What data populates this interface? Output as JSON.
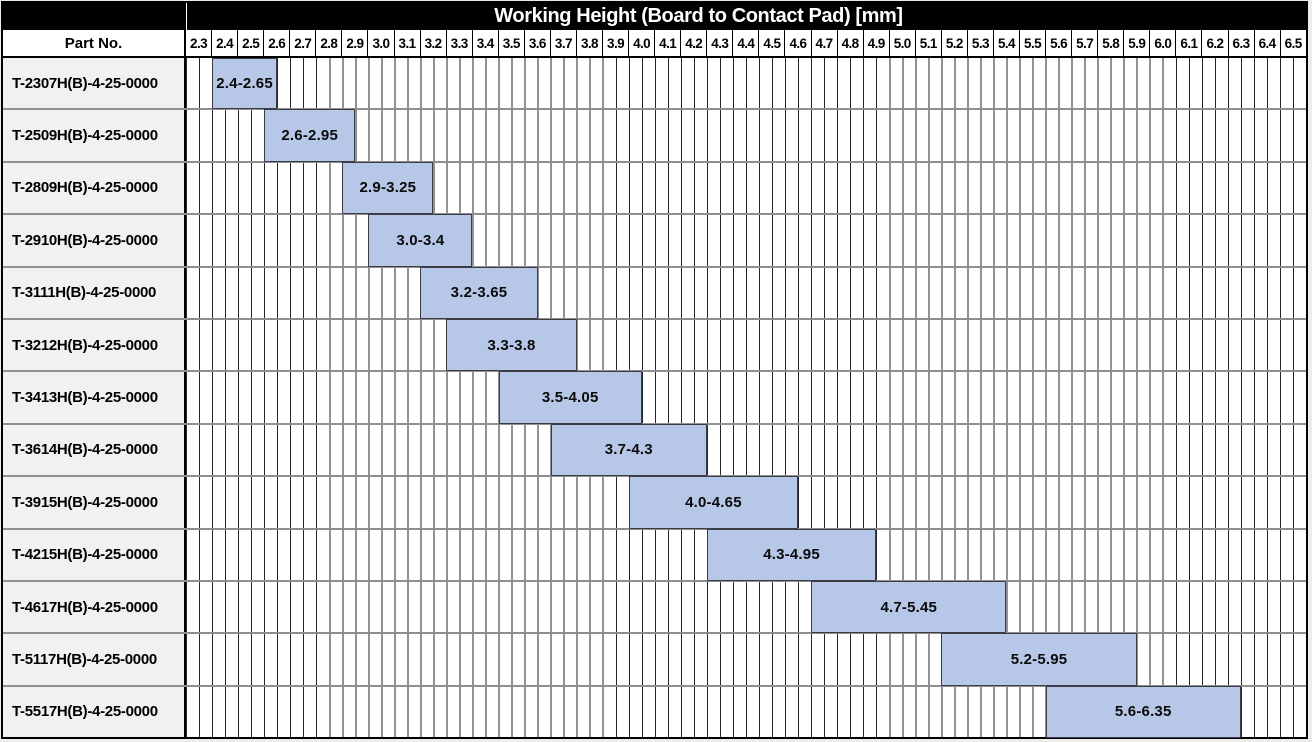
{
  "title": "Working Height (Board to Contact Pad) [mm]",
  "part_no_header": "Part No.",
  "colors": {
    "title_bg": "#000000",
    "title_text": "#ffffff",
    "bar_fill": "#b6c7e7",
    "bar_border": "#3c3c46",
    "part_cell_bg": "#f1f1f1",
    "grid_line": "#26262b",
    "row_separator": "#8f8f8f"
  },
  "chart_data": {
    "type": "bar",
    "subtype": "horizontal-range-gantt",
    "title": "Working Height (Board to Contact Pad) [mm]",
    "legend": "none",
    "grid": "on",
    "axis": {
      "min": 2.3,
      "max": 6.6,
      "tick_step": 0.1,
      "minor_division": 0.05,
      "tick_labels": [
        "2.3",
        "2.4",
        "2.5",
        "2.6",
        "2.7",
        "2.8",
        "2.9",
        "3.0",
        "3.1",
        "3.2",
        "3.3",
        "3.4",
        "3.5",
        "3.6",
        "3.7",
        "3.8",
        "3.9",
        "4.0",
        "4.1",
        "4.2",
        "4.3",
        "4.4",
        "4.5",
        "4.6",
        "4.7",
        "4.8",
        "4.9",
        "5.0",
        "5.1",
        "5.2",
        "5.3",
        "5.4",
        "5.5",
        "5.6",
        "5.7",
        "5.8",
        "5.9",
        "6.0",
        "6.1",
        "6.2",
        "6.3",
        "6.4",
        "6.5"
      ]
    },
    "rows": [
      {
        "part_no": "T-2307H(B)-4-25-0000",
        "range_min": 2.4,
        "range_max": 2.65,
        "range_label": "2.4-2.65"
      },
      {
        "part_no": "T-2509H(B)-4-25-0000",
        "range_min": 2.6,
        "range_max": 2.95,
        "range_label": "2.6-2.95"
      },
      {
        "part_no": "T-2809H(B)-4-25-0000",
        "range_min": 2.9,
        "range_max": 3.25,
        "range_label": "2.9-3.25"
      },
      {
        "part_no": "T-2910H(B)-4-25-0000",
        "range_min": 3.0,
        "range_max": 3.4,
        "range_label": "3.0-3.4"
      },
      {
        "part_no": "T-3111H(B)-4-25-0000",
        "range_min": 3.2,
        "range_max": 3.65,
        "range_label": "3.2-3.65"
      },
      {
        "part_no": "T-3212H(B)-4-25-0000",
        "range_min": 3.3,
        "range_max": 3.8,
        "range_label": "3.3-3.8"
      },
      {
        "part_no": "T-3413H(B)-4-25-0000",
        "range_min": 3.5,
        "range_max": 4.05,
        "range_label": "3.5-4.05"
      },
      {
        "part_no": "T-3614H(B)-4-25-0000",
        "range_min": 3.7,
        "range_max": 4.3,
        "range_label": "3.7-4.3"
      },
      {
        "part_no": "T-3915H(B)-4-25-0000",
        "range_min": 4.0,
        "range_max": 4.65,
        "range_label": "4.0-4.65"
      },
      {
        "part_no": "T-4215H(B)-4-25-0000",
        "range_min": 4.3,
        "range_max": 4.95,
        "range_label": "4.3-4.95"
      },
      {
        "part_no": "T-4617H(B)-4-25-0000",
        "range_min": 4.7,
        "range_max": 5.45,
        "range_label": "4.7-5.45"
      },
      {
        "part_no": "T-5117H(B)-4-25-0000",
        "range_min": 5.2,
        "range_max": 5.95,
        "range_label": "5.2-5.95"
      },
      {
        "part_no": "T-5517H(B)-4-25-0000",
        "range_min": 5.6,
        "range_max": 6.35,
        "range_label": "5.6-6.35"
      }
    ]
  }
}
